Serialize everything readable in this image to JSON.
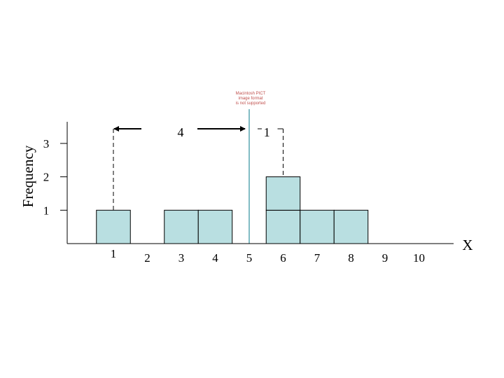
{
  "placeholder_note": [
    "Macintosh PICT",
    "image format",
    "is not supported"
  ],
  "chart_data": {
    "type": "bar",
    "title": "",
    "xlabel": "X",
    "ylabel": "Frequency",
    "x_ticks": [
      "1",
      "2",
      "3",
      "4",
      "5",
      "6",
      "7",
      "8",
      "9",
      "10"
    ],
    "y_ticks": [
      "1",
      "2",
      "3"
    ],
    "xlim": [
      0,
      10.5
    ],
    "ylim": [
      0,
      3.5
    ],
    "bars": [
      {
        "x": 1,
        "count": 1
      },
      {
        "x": 3,
        "count": 1
      },
      {
        "x": 4,
        "count": 1
      },
      {
        "x": 6,
        "count": 2
      },
      {
        "x": 7,
        "count": 1
      },
      {
        "x": 8,
        "count": 1
      }
    ],
    "reference_line_x": 5,
    "distance_annotations": [
      {
        "label": "4",
        "from_x": 1,
        "to_x": 5
      },
      {
        "label": "1",
        "from_x": 5,
        "to_x": 6
      }
    ],
    "bar_color": "#b9dfe1",
    "line_color": "#2f8f9d"
  }
}
